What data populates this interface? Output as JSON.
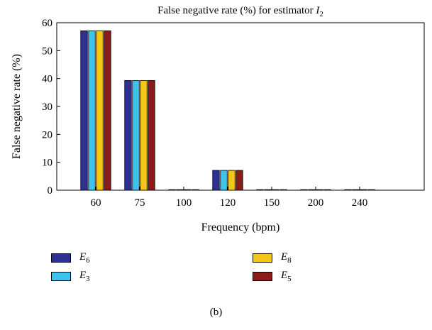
{
  "chart_data": {
    "type": "bar",
    "title_prefix": "False negative rate (%) for estimator ",
    "title_symbol": "I",
    "title_subscript": "2",
    "xlabel": "Frequency (bpm)",
    "ylabel": "False negative rate (%)",
    "ylim": [
      0,
      60
    ],
    "yticks": [
      0,
      10,
      20,
      30,
      40,
      50,
      60
    ],
    "categories": [
      "60",
      "75",
      "100",
      "120",
      "150",
      "200",
      "240"
    ],
    "series": [
      {
        "name": "E6",
        "symbol": "E",
        "subscript": "6",
        "color": "#2e3192",
        "values": [
          57.1,
          39.3,
          0,
          7.1,
          0,
          0,
          0
        ]
      },
      {
        "name": "E3",
        "symbol": "E",
        "subscript": "3",
        "color": "#3ec3ea",
        "values": [
          57.1,
          39.3,
          0,
          7.1,
          0,
          0,
          0
        ]
      },
      {
        "name": "E8",
        "symbol": "E",
        "subscript": "8",
        "color": "#f5c518",
        "values": [
          57.1,
          39.3,
          0,
          7.1,
          0,
          0,
          0
        ]
      },
      {
        "name": "E5",
        "symbol": "E",
        "subscript": "5",
        "color": "#8b1a1a",
        "values": [
          57.1,
          39.3,
          0,
          7.1,
          0,
          0,
          0
        ]
      }
    ],
    "grid": false,
    "legend_placement": "below"
  },
  "caption": "(b)"
}
